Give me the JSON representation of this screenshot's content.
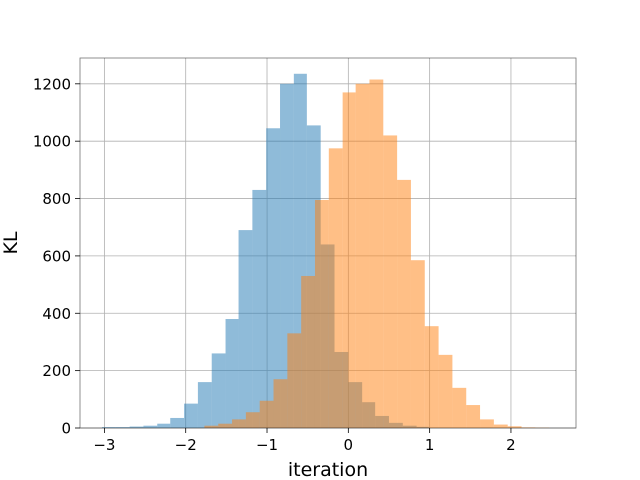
{
  "chart_data": {
    "type": "bar",
    "subtype": "overlapping-histogram",
    "title": "",
    "xlabel": "iteration",
    "ylabel": "KL",
    "xlim": [
      -3.3,
      2.8
    ],
    "ylim": [
      0,
      1290
    ],
    "xticks": [
      -3,
      -2,
      -1,
      0,
      1,
      2
    ],
    "xtick_labels": [
      "−3",
      "−2",
      "−1",
      "0",
      "1",
      "2"
    ],
    "yticks": [
      0,
      200,
      400,
      600,
      800,
      1000,
      1200
    ],
    "ytick_labels": [
      "0",
      "200",
      "400",
      "600",
      "800",
      "1000",
      "1200"
    ],
    "grid": true,
    "legend": "none",
    "series": [
      {
        "color": "#1f77b4",
        "opacity": 0.5,
        "bin_edges": [
          -3.03,
          -2.86,
          -2.69,
          -2.52,
          -2.35,
          -2.19,
          -2.02,
          -1.85,
          -1.68,
          -1.51,
          -1.35,
          -1.18,
          -1.01,
          -0.84,
          -0.67,
          -0.51,
          -0.34,
          -0.17,
          0.0,
          0.17,
          0.33,
          0.5,
          0.67,
          0.84,
          0.99
        ],
        "values": [
          3,
          3,
          5,
          8,
          15,
          35,
          85,
          160,
          260,
          380,
          690,
          830,
          1045,
          1200,
          1235,
          1055,
          640,
          265,
          160,
          90,
          42,
          18,
          8,
          4
        ]
      },
      {
        "color": "#ff7f0e",
        "opacity": 0.5,
        "bin_edges": [
          -1.77,
          -1.6,
          -1.43,
          -1.26,
          -1.09,
          -0.92,
          -0.75,
          -0.58,
          -0.41,
          -0.24,
          -0.07,
          0.09,
          0.26,
          0.43,
          0.6,
          0.77,
          0.94,
          1.11,
          1.28,
          1.45,
          1.62,
          1.79,
          1.96,
          2.13,
          2.3,
          2.47
        ],
        "values": [
          8,
          15,
          30,
          55,
          95,
          170,
          330,
          530,
          795,
          975,
          1170,
          1200,
          1215,
          1020,
          865,
          585,
          355,
          255,
          140,
          80,
          30,
          12,
          6,
          2,
          1
        ]
      }
    ]
  }
}
